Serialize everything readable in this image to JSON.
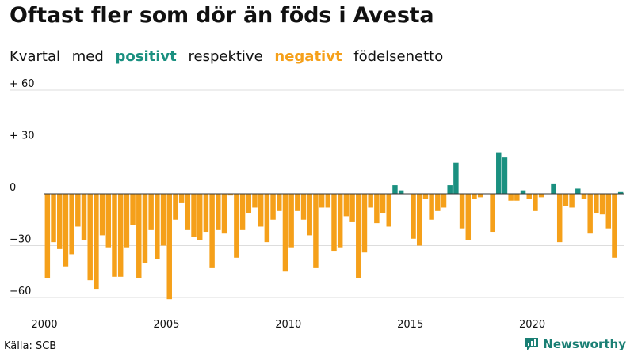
{
  "header": {
    "title": "Oftast fler som dör än föds i Avesta",
    "subtitle": [
      {
        "text": "Kvartal",
        "style": "plain"
      },
      {
        "text": "med",
        "style": "plain"
      },
      {
        "text": "positivt",
        "style": "pos"
      },
      {
        "text": "respektive",
        "style": "plain"
      },
      {
        "text": "negativt",
        "style": "neg"
      },
      {
        "text": "födelsenetto",
        "style": "plain"
      }
    ]
  },
  "footer": {
    "source": "Källa: SCB",
    "brand": "Newsworthy",
    "brand_icon": "newsworthy-logo-icon"
  },
  "colors": {
    "positive": "#1a9080",
    "negative": "#f5a01a",
    "grid": "#dddddd",
    "zero_line": "#333333"
  },
  "chart_data": {
    "type": "bar",
    "title": "Oftast fler som dör än föds i Avesta",
    "subtitle": "Kvartal med positivt respektive negativt födelsenetto",
    "ylim": [
      -60,
      60
    ],
    "y_ticks": [
      {
        "value": 60,
        "label": "+ 60"
      },
      {
        "value": 30,
        "label": "+ 30"
      },
      {
        "value": 0,
        "label": "0"
      },
      {
        "value": -30,
        "label": "−30"
      },
      {
        "value": -60,
        "label": "−60"
      }
    ],
    "x_ticks": [
      {
        "year": 2000,
        "label": "2000"
      },
      {
        "year": 2005,
        "label": "2005"
      },
      {
        "year": 2010,
        "label": "2010"
      },
      {
        "year": 2015,
        "label": "2015"
      },
      {
        "year": 2020,
        "label": "2020"
      }
    ],
    "start": "2000 Q1",
    "end": "2023 Q3",
    "grid": "horizontal",
    "values": [
      -49,
      -28,
      -32,
      -42,
      -35,
      -19,
      -27,
      -50,
      -55,
      -24,
      -31,
      -48,
      -48,
      -31,
      -18,
      -49,
      -40,
      -21,
      -38,
      -30,
      -61,
      -15,
      -5,
      -21,
      -25,
      -27,
      -22,
      -43,
      -21,
      -23,
      -1,
      -37,
      -21,
      -11,
      -8,
      -19,
      -28,
      -15,
      -10,
      -45,
      -31,
      -10,
      -15,
      -24,
      -43,
      -8,
      -8,
      -33,
      -31,
      -13,
      -16,
      -49,
      -34,
      -8,
      -17,
      -11,
      -19,
      5,
      2,
      0,
      -26,
      -30,
      -3,
      -15,
      -10,
      -8,
      5,
      18,
      -20,
      -27,
      -3,
      -2,
      0,
      -22,
      24,
      21,
      -4,
      -4,
      2,
      -3,
      -10,
      -2,
      0,
      6,
      -28,
      -7,
      -8,
      3,
      -3,
      -23,
      -11,
      -12,
      -20,
      -37,
      1
    ]
  }
}
